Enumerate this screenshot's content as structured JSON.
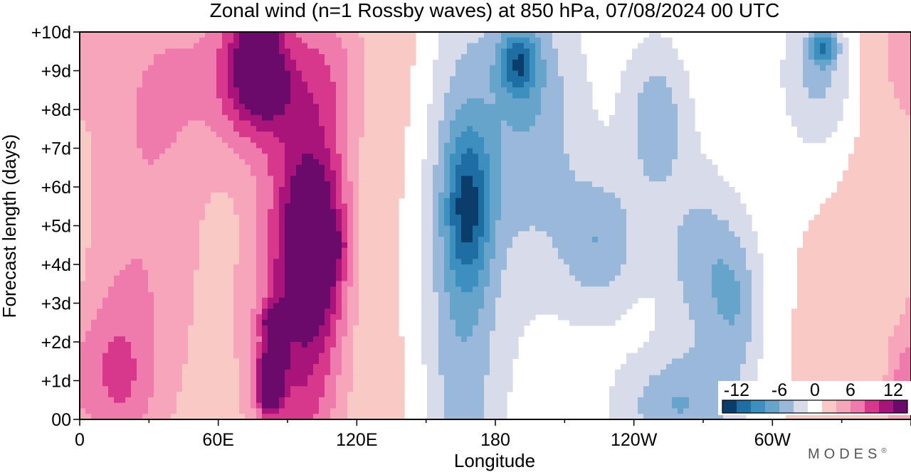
{
  "chart_data": {
    "type": "heatmap",
    "title": "Zonal wind (n=1 Rossby waves) at 850 hPa,  07/08/2024  00 UTC",
    "xlabel": "Longitude",
    "ylabel": "Forecast length (days)",
    "x_ticks": [
      "0",
      "60E",
      "120E",
      "180",
      "120W",
      "60W"
    ],
    "x_tick_values": [
      0,
      60,
      120,
      180,
      240,
      300
    ],
    "x_range": [
      0,
      360
    ],
    "y_ticks": [
      "00",
      "+1d",
      "+2d",
      "+3d",
      "+4d",
      "+5d",
      "+6d",
      "+7d",
      "+8d",
      "+9d",
      "+10d"
    ],
    "y_range": [
      0,
      10
    ],
    "colorbar": {
      "tick_labels": [
        "-12",
        "-6",
        "0",
        "6",
        "12"
      ],
      "levels": [
        -14,
        -12,
        -10,
        -8,
        -6,
        -4,
        -2,
        2,
        4,
        6,
        8,
        10,
        12,
        14
      ],
      "colors": [
        "#0b3d6b",
        "#1f6ea3",
        "#3d8fc0",
        "#66a4cc",
        "#9ab8d9",
        "#d7dbea",
        "#ffffff",
        "#f9c9c6",
        "#f7a5bb",
        "#ef7bac",
        "#d8388c",
        "#a8147a",
        "#6a0a6a"
      ]
    },
    "fields": [
      {
        "lon": 25,
        "day": 4.5,
        "value": 4,
        "spread_lon": 22,
        "spread_day": 4.2
      },
      {
        "lon": 15,
        "day": 1.0,
        "value": 4.5,
        "spread_lon": 12,
        "spread_day": 1.5
      },
      {
        "lon": 50,
        "day": 9.0,
        "value": 3,
        "spread_lon": 25,
        "spread_day": 1.8
      },
      {
        "lon": 75,
        "day": 9.0,
        "value": 9,
        "spread_lon": 10,
        "spread_day": 1.2
      },
      {
        "lon": 78,
        "day": 10.0,
        "value": 10.5,
        "spread_lon": 5,
        "spread_day": 0.4
      },
      {
        "lon": 82,
        "day": 8.6,
        "value": 8.5,
        "spread_lon": 5,
        "spread_day": 0.4
      },
      {
        "lon": 95,
        "day": 2.0,
        "value": 8.5,
        "spread_lon": 15,
        "spread_day": 3.0
      },
      {
        "lon": 85,
        "day": 2.5,
        "value": 10,
        "spread_lon": 4,
        "spread_day": 0.3
      },
      {
        "lon": 83,
        "day": 1.4,
        "value": 10,
        "spread_lon": 4,
        "spread_day": 0.35
      },
      {
        "lon": 82,
        "day": 0.6,
        "value": 10,
        "spread_lon": 3.5,
        "spread_day": 0.3
      },
      {
        "lon": 102,
        "day": 4.4,
        "value": 8.5,
        "spread_lon": 9,
        "spread_day": 1.4
      },
      {
        "lon": 107,
        "day": 4.5,
        "value": 10,
        "spread_lon": 4,
        "spread_day": 0.2
      },
      {
        "lon": 100,
        "day": 3.6,
        "value": 10,
        "spread_lon": 4,
        "spread_day": 0.2
      },
      {
        "lon": 100,
        "day": 6.6,
        "value": 5,
        "spread_lon": 14,
        "spread_day": 2.0
      },
      {
        "lon": 105,
        "day": 9.2,
        "value": 4,
        "spread_lon": 18,
        "spread_day": 1.5
      },
      {
        "lon": 165,
        "day": 3.0,
        "value": -5,
        "spread_lon": 12,
        "spread_day": 6.0
      },
      {
        "lon": 168,
        "day": 5.5,
        "value": -7.5,
        "spread_lon": 7,
        "spread_day": 1.4
      },
      {
        "lon": 190,
        "day": 9.2,
        "value": -7.5,
        "spread_lon": 6,
        "spread_day": 0.6
      },
      {
        "lon": 195,
        "day": 8.0,
        "value": -4.5,
        "spread_lon": 15,
        "spread_day": 2.5
      },
      {
        "lon": 225,
        "day": 4.6,
        "value": -4.5,
        "spread_lon": 12,
        "spread_day": 1.2
      },
      {
        "lon": 250,
        "day": 7.8,
        "value": -4.5,
        "spread_lon": 10,
        "spread_day": 1.5
      },
      {
        "lon": 270,
        "day": 4.0,
        "value": -4.5,
        "spread_lon": 12,
        "spread_day": 1.6
      },
      {
        "lon": 285,
        "day": 2.8,
        "value": -4,
        "spread_lon": 8,
        "spread_day": 1.4
      },
      {
        "lon": 260,
        "day": 0.3,
        "value": -5.5,
        "spread_lon": 18,
        "spread_day": 1.0
      },
      {
        "lon": 320,
        "day": 9.0,
        "value": -5,
        "spread_lon": 12,
        "spread_day": 1.5
      },
      {
        "lon": 322,
        "day": 9.6,
        "value": -7.5,
        "spread_lon": 4,
        "spread_day": 0.3
      },
      {
        "lon": 355,
        "day": 9.5,
        "value": 3,
        "spread_lon": 8,
        "spread_day": 1.2
      },
      {
        "lon": 355,
        "day": 1.0,
        "value": 3,
        "spread_lon": 6,
        "spread_day": 1.0
      },
      {
        "lon": 180,
        "day": 5.0,
        "value": -2.5,
        "spread_lon": 40,
        "spread_day": 8.0
      },
      {
        "lon": 270,
        "day": 5.0,
        "value": -2.5,
        "spread_lon": 60,
        "spread_day": 8.0
      }
    ]
  },
  "branding": {
    "logo_text": "MODES",
    "registered_mark": "®"
  }
}
